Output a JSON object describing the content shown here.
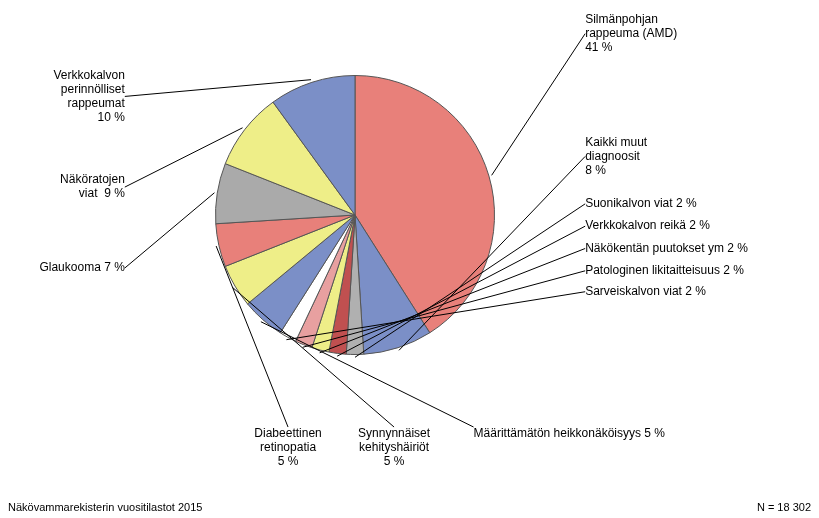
{
  "chart_data": {
    "type": "pie",
    "categories": [
      "Silmänpohjan\nrappeuma (AMD)\n41 %",
      "Kaikki muut\ndiagnoosit\n8 %",
      "Suonikalvon viat 2 %",
      "Verkkokalvon reikä 2 %",
      "Näkökentän puutokset ym 2 %",
      "Patologinen likitaitteisuus 2 %",
      "Sarveiskalvon viat 2 %",
      "Määrittämätön heikkonäköisyys 5 %",
      "Synnynnäiset\nkehityshäiriöt\n5 %",
      "Diabeettinen\nretinopatia\n5 %",
      "Glaukooma 7 %",
      "Näköratojen\nviat  9 %",
      "Verkkokalvon\nperinnölliset\nrappeumat\n10 %"
    ],
    "values": [
      41,
      8,
      2,
      2,
      2,
      2,
      2,
      5,
      5,
      5,
      7,
      9,
      10
    ],
    "colors": [
      "#E8807A",
      "#7B8FC7",
      "#B0B0B0",
      "#C05050",
      "#EEEE88",
      "#E8A0A0",
      "#FFFFFF",
      "#7B8FC7",
      "#EEEE88",
      "#E8807A",
      "#AAAAAA",
      "#EEEE88",
      "#7B8FC7"
    ],
    "annotations": [
      "Näkövammarekisterin vuositilastot 2015",
      "N = 18 302"
    ],
    "legend": false
  }
}
